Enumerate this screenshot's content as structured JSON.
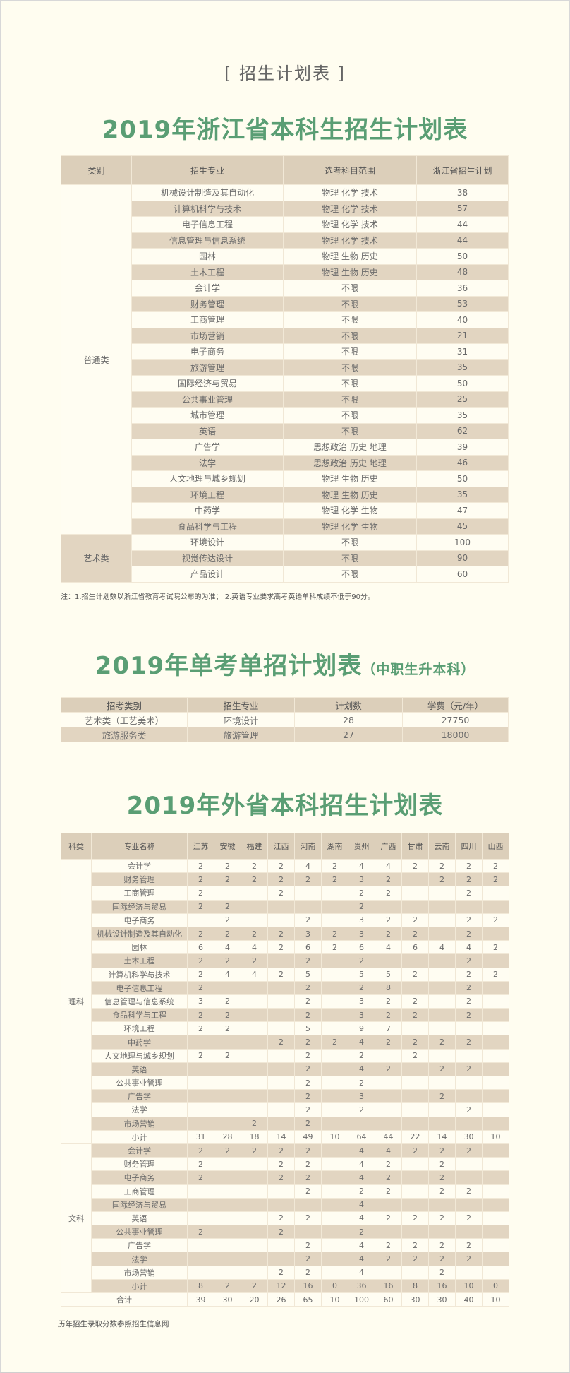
{
  "section_label": "[  招生计划表  ]",
  "zhejiang": {
    "title": "2019年浙江省本科生招生计划表",
    "headers": [
      "类别",
      "招生专业",
      "选考科目范围",
      "浙江省招生计划"
    ],
    "groups": [
      {
        "category": "普通类",
        "rows": [
          [
            "机械设计制造及其自动化",
            "物理 化学 技术",
            "38"
          ],
          [
            "计算机科学与技术",
            "物理 化学 技术",
            "57"
          ],
          [
            "电子信息工程",
            "物理 化学 技术",
            "44"
          ],
          [
            "信息管理与信息系统",
            "物理 化学 技术",
            "44"
          ],
          [
            "园林",
            "物理 生物 历史",
            "50"
          ],
          [
            "土木工程",
            "物理 生物 历史",
            "48"
          ],
          [
            "会计学",
            "不限",
            "36"
          ],
          [
            "财务管理",
            "不限",
            "53"
          ],
          [
            "工商管理",
            "不限",
            "40"
          ],
          [
            "市场营销",
            "不限",
            "21"
          ],
          [
            "电子商务",
            "不限",
            "31"
          ],
          [
            "旅游管理",
            "不限",
            "35"
          ],
          [
            "国际经济与贸易",
            "不限",
            "50"
          ],
          [
            "公共事业管理",
            "不限",
            "25"
          ],
          [
            "城市管理",
            "不限",
            "35"
          ],
          [
            "英语",
            "不限",
            "62"
          ],
          [
            "广告学",
            "思想政治 历史 地理",
            "39"
          ],
          [
            "法学",
            "思想政治 历史 地理",
            "46"
          ],
          [
            "人文地理与城乡规划",
            "物理 生物 历史",
            "50"
          ],
          [
            "环境工程",
            "物理 生物 历史",
            "35"
          ],
          [
            "中药学",
            "物理 化学 生物",
            "47"
          ],
          [
            "食品科学与工程",
            "物理 化学 生物",
            "45"
          ]
        ]
      },
      {
        "category": "艺术类",
        "rows": [
          [
            "环境设计",
            "不限",
            "100"
          ],
          [
            "视觉传达设计",
            "不限",
            "90"
          ],
          [
            "产品设计",
            "不限",
            "60"
          ]
        ]
      }
    ],
    "note": "注：1.招生计划数以浙江省教育考试院公布的为准；    2.英语专业要求高考英语单科成绩不低于90分。"
  },
  "single_exam": {
    "title": "2019年单考单招计划表",
    "subtitle": "（中职生升本科）",
    "headers": [
      "招考类别",
      "招生专业",
      "计划数",
      "学费（元/年）"
    ],
    "rows": [
      [
        "艺术类（工艺美术）",
        "环境设计",
        "28",
        "27750"
      ],
      [
        "旅游服务类",
        "旅游管理",
        "27",
        "18000"
      ]
    ]
  },
  "other_provinces": {
    "title": "2019年外省本科招生计划表",
    "headers": [
      "科类",
      "专业名称",
      "江苏",
      "安徽",
      "福建",
      "江西",
      "河南",
      "湖南",
      "贵州",
      "广西",
      "甘肃",
      "云南",
      "四川",
      "山西"
    ],
    "groups": [
      {
        "category": "理科",
        "rows": [
          [
            "会计学",
            "2",
            "2",
            "2",
            "2",
            "4",
            "2",
            "4",
            "4",
            "2",
            "2",
            "2",
            "2"
          ],
          [
            "财务管理",
            "2",
            "2",
            "2",
            "2",
            "2",
            "2",
            "3",
            "2",
            "",
            "2",
            "2",
            "2"
          ],
          [
            "工商管理",
            "2",
            "",
            "",
            "2",
            "",
            "",
            "2",
            "2",
            "",
            "",
            "2",
            ""
          ],
          [
            "国际经济与贸易",
            "2",
            "2",
            "",
            "",
            "",
            "",
            "2",
            "",
            "",
            "",
            "",
            ""
          ],
          [
            "电子商务",
            "",
            "2",
            "",
            "",
            "2",
            "",
            "3",
            "2",
            "2",
            "",
            "2",
            "2"
          ],
          [
            "机械设计制造及其自动化",
            "2",
            "2",
            "2",
            "2",
            "3",
            "2",
            "3",
            "2",
            "2",
            "",
            "2",
            ""
          ],
          [
            "园林",
            "6",
            "4",
            "4",
            "2",
            "6",
            "2",
            "6",
            "4",
            "6",
            "4",
            "4",
            "2"
          ],
          [
            "土木工程",
            "2",
            "2",
            "2",
            "",
            "2",
            "",
            "2",
            "",
            "",
            "",
            "2",
            ""
          ],
          [
            "计算机科学与技术",
            "2",
            "4",
            "4",
            "2",
            "5",
            "",
            "5",
            "5",
            "2",
            "",
            "2",
            "2"
          ],
          [
            "电子信息工程",
            "2",
            "",
            "",
            "",
            "2",
            "",
            "2",
            "8",
            "",
            "",
            "2",
            ""
          ],
          [
            "信息管理与信息系统",
            "3",
            "2",
            "",
            "",
            "2",
            "",
            "3",
            "2",
            "2",
            "",
            "2",
            ""
          ],
          [
            "食品科学与工程",
            "2",
            "2",
            "",
            "",
            "2",
            "",
            "3",
            "2",
            "2",
            "",
            "2",
            ""
          ],
          [
            "环境工程",
            "2",
            "2",
            "",
            "",
            "5",
            "",
            "9",
            "7",
            "",
            "",
            "",
            ""
          ],
          [
            "中药学",
            "",
            "",
            "",
            "2",
            "2",
            "2",
            "4",
            "2",
            "2",
            "2",
            "2",
            ""
          ],
          [
            "人文地理与城乡规划",
            "2",
            "2",
            "",
            "",
            "2",
            "",
            "2",
            "",
            "2",
            "",
            "",
            ""
          ],
          [
            "英语",
            "",
            "",
            "",
            "",
            "2",
            "",
            "4",
            "2",
            "",
            "2",
            "2",
            ""
          ],
          [
            "公共事业管理",
            "",
            "",
            "",
            "",
            "2",
            "",
            "2",
            "",
            "",
            "",
            "",
            ""
          ],
          [
            "广告学",
            "",
            "",
            "",
            "",
            "2",
            "",
            "3",
            "",
            "",
            "2",
            "",
            ""
          ],
          [
            "法学",
            "",
            "",
            "",
            "",
            "2",
            "",
            "2",
            "",
            "",
            "",
            "2",
            ""
          ],
          [
            "市场营销",
            "",
            "",
            "2",
            "",
            "2",
            "",
            "",
            "",
            "",
            "",
            "",
            ""
          ],
          [
            "小计",
            "31",
            "28",
            "18",
            "14",
            "49",
            "10",
            "64",
            "44",
            "22",
            "14",
            "30",
            "10"
          ]
        ]
      },
      {
        "category": "文科",
        "rows": [
          [
            "会计学",
            "2",
            "2",
            "2",
            "2",
            "2",
            "",
            "4",
            "4",
            "2",
            "2",
            "2",
            ""
          ],
          [
            "财务管理",
            "2",
            "",
            "",
            "2",
            "2",
            "",
            "4",
            "2",
            "",
            "2",
            "",
            ""
          ],
          [
            "电子商务",
            "2",
            "",
            "",
            "2",
            "2",
            "",
            "4",
            "2",
            "",
            "2",
            "",
            ""
          ],
          [
            "工商管理",
            "",
            "",
            "",
            "",
            "2",
            "",
            "2",
            "2",
            "",
            "2",
            "2",
            ""
          ],
          [
            "国际经济与贸易",
            "",
            "",
            "",
            "",
            "",
            "",
            "4",
            "",
            "",
            "",
            "",
            ""
          ],
          [
            "英语",
            "",
            "",
            "",
            "2",
            "2",
            "",
            "4",
            "2",
            "2",
            "2",
            "2",
            ""
          ],
          [
            "公共事业管理",
            "2",
            "",
            "",
            "2",
            "",
            "",
            "2",
            "",
            "",
            "",
            "",
            ""
          ],
          [
            "广告学",
            "",
            "",
            "",
            "",
            "2",
            "",
            "4",
            "2",
            "2",
            "2",
            "2",
            ""
          ],
          [
            "法学",
            "",
            "",
            "",
            "",
            "2",
            "",
            "4",
            "2",
            "2",
            "2",
            "2",
            ""
          ],
          [
            "市场营销",
            "",
            "",
            "",
            "2",
            "2",
            "",
            "4",
            "",
            "",
            "2",
            "",
            ""
          ],
          [
            "小计",
            "8",
            "2",
            "2",
            "12",
            "16",
            "0",
            "36",
            "16",
            "8",
            "16",
            "10",
            "0"
          ]
        ]
      }
    ],
    "total": [
      "合计",
      "39",
      "30",
      "20",
      "26",
      "65",
      "10",
      "100",
      "60",
      "30",
      "30",
      "40",
      "10"
    ]
  },
  "footer": "历年招生录取分数参照招生信息网",
  "colors": {
    "title_green": "#5a9e74",
    "header_bg": "#dccfba",
    "row_tan": "#e2d5c1",
    "row_cream": "#fffdf2",
    "page_bg": "#fffdf0"
  }
}
